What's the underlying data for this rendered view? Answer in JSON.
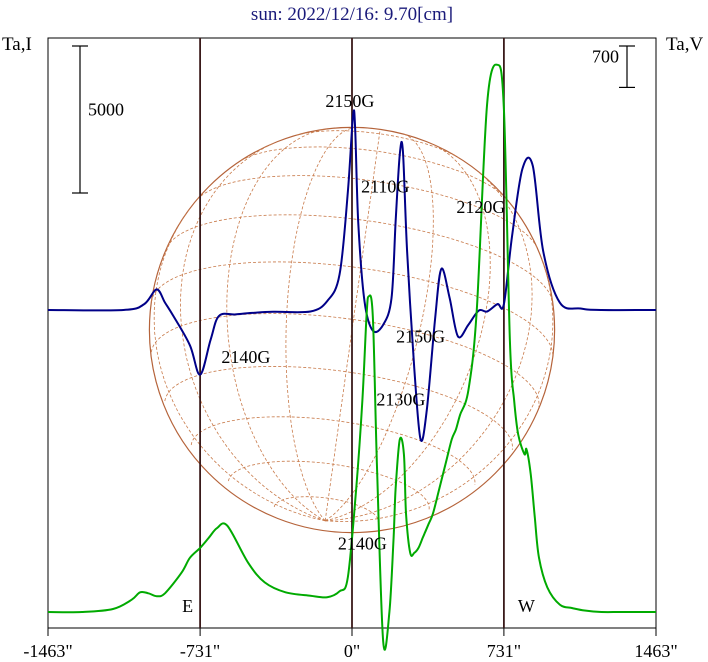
{
  "chart_data": {
    "type": "line",
    "title": "sun: 2022/12/16: 9.70[cm]",
    "left_axis_label": "Ta,I",
    "right_axis_label": "Ta,V",
    "scale_bars": [
      {
        "side": "left",
        "label": "5000",
        "value": 5000
      },
      {
        "side": "right",
        "label": "700",
        "value": 700
      }
    ],
    "x_ticks": [
      {
        "value": -1463,
        "label": "-1463\""
      },
      {
        "value": -731,
        "label": "-731\""
      },
      {
        "value": 0,
        "label": "0\""
      },
      {
        "value": 731,
        "label": "731\""
      },
      {
        "value": 1463,
        "label": "1463\""
      }
    ],
    "xlim": [
      -1463,
      1463
    ],
    "limb_markers": [
      {
        "x": -731,
        "label": "E"
      },
      {
        "x": 0,
        "label": ""
      },
      {
        "x": 731,
        "label": "W"
      }
    ],
    "disk_radius_arcsec": 975,
    "series": [
      {
        "key": "intensity",
        "color": "#000088",
        "baseline": 0,
        "x": [
          -1463,
          -1100,
          -1000,
          -940,
          -900,
          -860,
          -780,
          -731,
          -680,
          -640,
          -560,
          -480,
          -380,
          -200,
          -120,
          -60,
          -20,
          5,
          15,
          30,
          60,
          100,
          150,
          190,
          210,
          230,
          245,
          265,
          300,
          330,
          360,
          400,
          430,
          470,
          510,
          560,
          610,
          650,
          700,
          731,
          770,
          820,
          870,
          920,
          1000,
          1100,
          1200,
          1463
        ],
        "y": [
          0,
          0,
          200,
          700,
          250,
          -200,
          -1200,
          -2200,
          -1000,
          -200,
          -150,
          -100,
          -60,
          -50,
          300,
          1200,
          4000,
          6600,
          6200,
          3000,
          300,
          -700,
          -500,
          400,
          3000,
          5300,
          5400,
          2000,
          -2000,
          -4400,
          -3400,
          -300,
          1400,
          400,
          -900,
          -500,
          -20,
          -50,
          200,
          200,
          2500,
          4800,
          4900,
          2000,
          250,
          50,
          0,
          0
        ]
      },
      {
        "key": "polarization",
        "color": "#00aa00",
        "baseline": -4500,
        "x": [
          -1463,
          -1300,
          -1150,
          -1060,
          -1020,
          -980,
          -940,
          -900,
          -820,
          -780,
          -731,
          -690,
          -650,
          -600,
          -500,
          -420,
          -320,
          -200,
          -120,
          -60,
          -20,
          20,
          50,
          70,
          80,
          100,
          120,
          150,
          180,
          200,
          210,
          230,
          250,
          260,
          280,
          300,
          320,
          340,
          350,
          370,
          390,
          420,
          450,
          480,
          500,
          520,
          560,
          600,
          650,
          700,
          731,
          760,
          780,
          800,
          830,
          840,
          860,
          880,
          900,
          940,
          1000,
          1060,
          1120,
          1200,
          1300,
          1463
        ],
        "y": [
          0,
          0,
          60,
          250,
          400,
          380,
          320,
          380,
          800,
          1100,
          1300,
          1500,
          1700,
          1750,
          1000,
          600,
          400,
          330,
          300,
          420,
          700,
          2500,
          4300,
          6000,
          6400,
          6000,
          3000,
          -600,
          0,
          1500,
          2500,
          3500,
          3200,
          2000,
          1200,
          1200,
          1300,
          1500,
          1600,
          1800,
          2000,
          2500,
          3000,
          3500,
          3700,
          4000,
          4500,
          6100,
          10300,
          11100,
          10200,
          5500,
          4300,
          3600,
          3200,
          3300,
          2800,
          1900,
          1100,
          500,
          150,
          80,
          30,
          0,
          0,
          0
        ]
      }
    ]
  },
  "annotations": [
    {
      "label": "2150G",
      "x": -10,
      "y": 6900
    },
    {
      "label": "2110G",
      "x": 160,
      "y": 4000
    },
    {
      "label": "2120G",
      "x": 620,
      "y": 3300
    },
    {
      "label": "2140G",
      "x": -511,
      "y": -1800
    },
    {
      "label": "2150G",
      "x": 330,
      "y": -1100
    },
    {
      "label": "2130G",
      "x": 235,
      "y": -3250
    },
    {
      "label": "2140G",
      "x": 50,
      "y": -8150
    }
  ]
}
